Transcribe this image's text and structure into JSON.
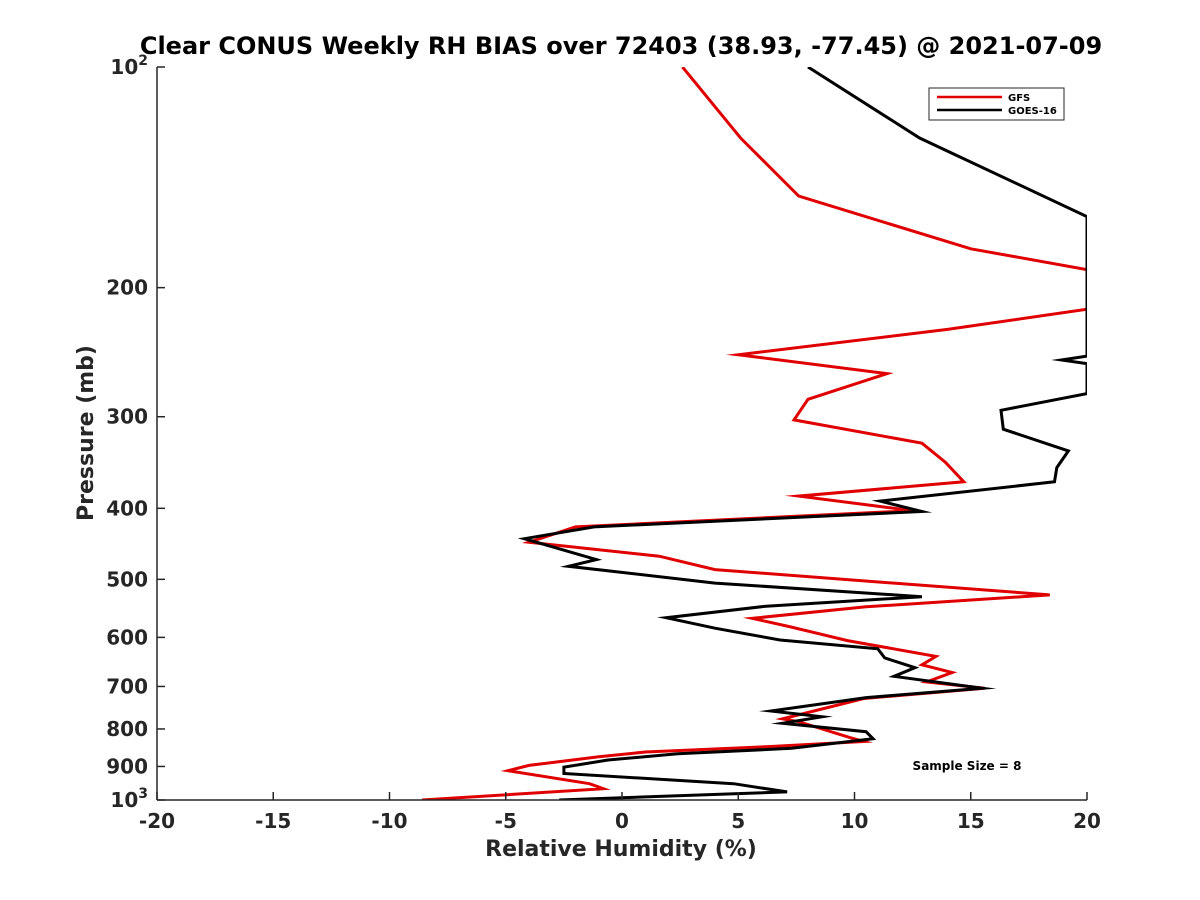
{
  "chart_data": {
    "type": "line",
    "title": "Clear CONUS Weekly RH BIAS over 72403 (38.93, -77.45) @ 2021-07-09",
    "xlabel": "Relative Humidity (%)",
    "ylabel": "Pressure (mb)",
    "xlim": [
      -20,
      20
    ],
    "ylim": [
      100,
      1000
    ],
    "y_scale": "log",
    "y_reversed": true,
    "x_ticks": [
      "-20",
      "-15",
      "-10",
      "-5",
      "0",
      "5",
      "10",
      "15",
      "20"
    ],
    "y_ticks": [
      {
        "base": "10",
        "exp": "2",
        "value": 100
      },
      {
        "text": "200",
        "value": 200
      },
      {
        "text": "300",
        "value": 300
      },
      {
        "text": "400",
        "value": 400
      },
      {
        "text": "500",
        "value": 500
      },
      {
        "text": "600",
        "value": 600
      },
      {
        "text": "700",
        "value": 700
      },
      {
        "text": "800",
        "value": 800
      },
      {
        "text": "900",
        "value": 900
      },
      {
        "base": "10",
        "exp": "3",
        "value": 1000
      }
    ],
    "grid": false,
    "legend_position": "top-right",
    "annotation": "Sample Size = 8",
    "series": [
      {
        "name": "GFS",
        "color": "#e00000",
        "points": [
          [
            2.6,
            100
          ],
          [
            5.1,
            125
          ],
          [
            7.6,
            150
          ],
          [
            15,
            177
          ],
          [
            20,
            189
          ],
          [
            20,
            214
          ],
          [
            14,
            228
          ],
          [
            5,
            247
          ],
          [
            11.4,
            262
          ],
          [
            8,
            284
          ],
          [
            7.4,
            303
          ],
          [
            12.9,
            326
          ],
          [
            13.9,
            346
          ],
          [
            14.7,
            368
          ],
          [
            7.6,
            385
          ],
          [
            12.5,
            403
          ],
          [
            -2,
            424
          ],
          [
            -4,
            445
          ],
          [
            1.6,
            465
          ],
          [
            4,
            485
          ],
          [
            18.4,
            525
          ],
          [
            10.5,
            545
          ],
          [
            5.6,
            565
          ],
          [
            7.2,
            580
          ],
          [
            9.7,
            606
          ],
          [
            13.5,
            637
          ],
          [
            12.9,
            654
          ],
          [
            14.2,
            670
          ],
          [
            13.1,
            690
          ],
          [
            15.6,
            704
          ],
          [
            10.4,
            727
          ],
          [
            6.9,
            775
          ],
          [
            7.6,
            782
          ],
          [
            9.8,
            822
          ],
          [
            10.4,
            832
          ],
          [
            6.5,
            845
          ],
          [
            1,
            860
          ],
          [
            -1,
            873
          ],
          [
            -4,
            897
          ],
          [
            -4.9,
            912
          ],
          [
            -1.4,
            950
          ],
          [
            -0.8,
            965
          ],
          [
            -8.6,
            1000
          ]
        ]
      },
      {
        "name": "GOES-16",
        "color": "#000000",
        "points": [
          [
            8,
            100
          ],
          [
            12.8,
            125
          ],
          [
            20,
            160
          ],
          [
            20,
            248
          ],
          [
            18.9,
            251
          ],
          [
            20,
            254
          ],
          [
            20,
            279
          ],
          [
            16.3,
            294
          ],
          [
            16.4,
            312
          ],
          [
            19.2,
            334
          ],
          [
            18.7,
            352
          ],
          [
            18.6,
            368
          ],
          [
            11.1,
            391
          ],
          [
            12.9,
            404
          ],
          [
            -1.2,
            424
          ],
          [
            -4.2,
            440
          ],
          [
            -1.1,
            470
          ],
          [
            -2.3,
            480
          ],
          [
            4,
            506
          ],
          [
            12.9,
            528
          ],
          [
            6.2,
            544
          ],
          [
            1.9,
            564
          ],
          [
            4,
            583
          ],
          [
            6.8,
            605
          ],
          [
            11,
            622
          ],
          [
            11.3,
            640
          ],
          [
            12.6,
            660
          ],
          [
            11.7,
            678
          ],
          [
            15.5,
            704
          ],
          [
            10.5,
            725
          ],
          [
            6.4,
            756
          ],
          [
            8.6,
            770
          ],
          [
            6.9,
            786
          ],
          [
            10.5,
            807
          ],
          [
            10.8,
            825
          ],
          [
            7.3,
            850
          ],
          [
            2.4,
            865
          ],
          [
            -0.6,
            882
          ],
          [
            -2.5,
            902
          ],
          [
            -2.5,
            920
          ],
          [
            4.8,
            950
          ],
          [
            7.1,
            975
          ],
          [
            -2.7,
            1000
          ]
        ]
      }
    ]
  }
}
